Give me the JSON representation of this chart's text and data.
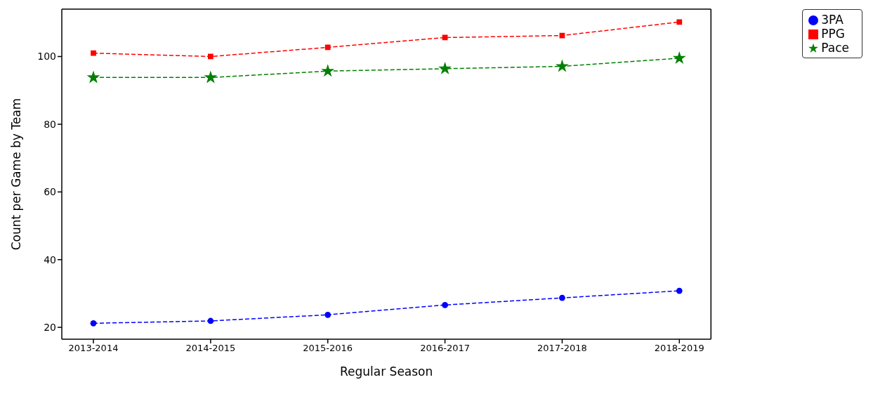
{
  "chart_data": {
    "type": "line",
    "xlabel": "Regular Season",
    "ylabel": "Count per Game by Team",
    "categories": [
      "2013-2014",
      "2014-2015",
      "2015-2016",
      "2016-2017",
      "2017-2018",
      "2018-2019"
    ],
    "series": [
      {
        "name": "Pace",
        "color": "#008000",
        "marker": "star",
        "values": [
          93.8,
          93.8,
          95.7,
          96.4,
          97.1,
          99.5
        ]
      },
      {
        "name": "3PA",
        "color": "#0000ff",
        "marker": "circle",
        "values": [
          21.2,
          21.9,
          23.7,
          26.6,
          28.7,
          30.8
        ]
      },
      {
        "name": "PPG",
        "color": "#ff0000",
        "marker": "square",
        "values": [
          101.0,
          100.0,
          102.7,
          105.6,
          106.2,
          110.2
        ]
      }
    ],
    "ylim": [
      16.5,
      114
    ],
    "yticks": [
      20,
      40,
      60,
      80,
      100
    ],
    "grid": false,
    "legend": "top right",
    "line_style": "dashed"
  }
}
